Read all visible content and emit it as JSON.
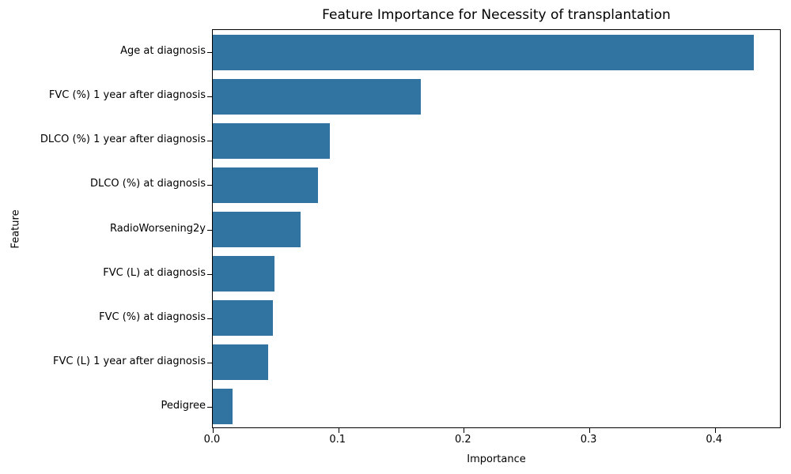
{
  "chart_data": {
    "type": "bar",
    "orientation": "horizontal",
    "title": "Feature Importance for Necessity of transplantation",
    "xlabel": "Importance",
    "ylabel": "Feature",
    "categories": [
      "Age at diagnosis",
      "FVC (%) 1 year after diagnosis",
      "DLCO (%) 1 year after diagnosis",
      "DLCO (%) at diagnosis",
      "RadioWorsening2y",
      "FVC (L) at diagnosis",
      "FVC (%) at diagnosis",
      "FVC (L) 1 year after diagnosis",
      "Pedigree"
    ],
    "values": [
      0.431,
      0.166,
      0.093,
      0.084,
      0.07,
      0.049,
      0.048,
      0.044,
      0.016
    ],
    "xlim": [
      0,
      0.4531
    ],
    "xticks": [
      0.0,
      0.1,
      0.2,
      0.3,
      0.4
    ],
    "xtick_labels": [
      "0.0",
      "0.1",
      "0.2",
      "0.3",
      "0.4"
    ],
    "bar_color": "#3274a1",
    "grid": false,
    "legend": null
  }
}
